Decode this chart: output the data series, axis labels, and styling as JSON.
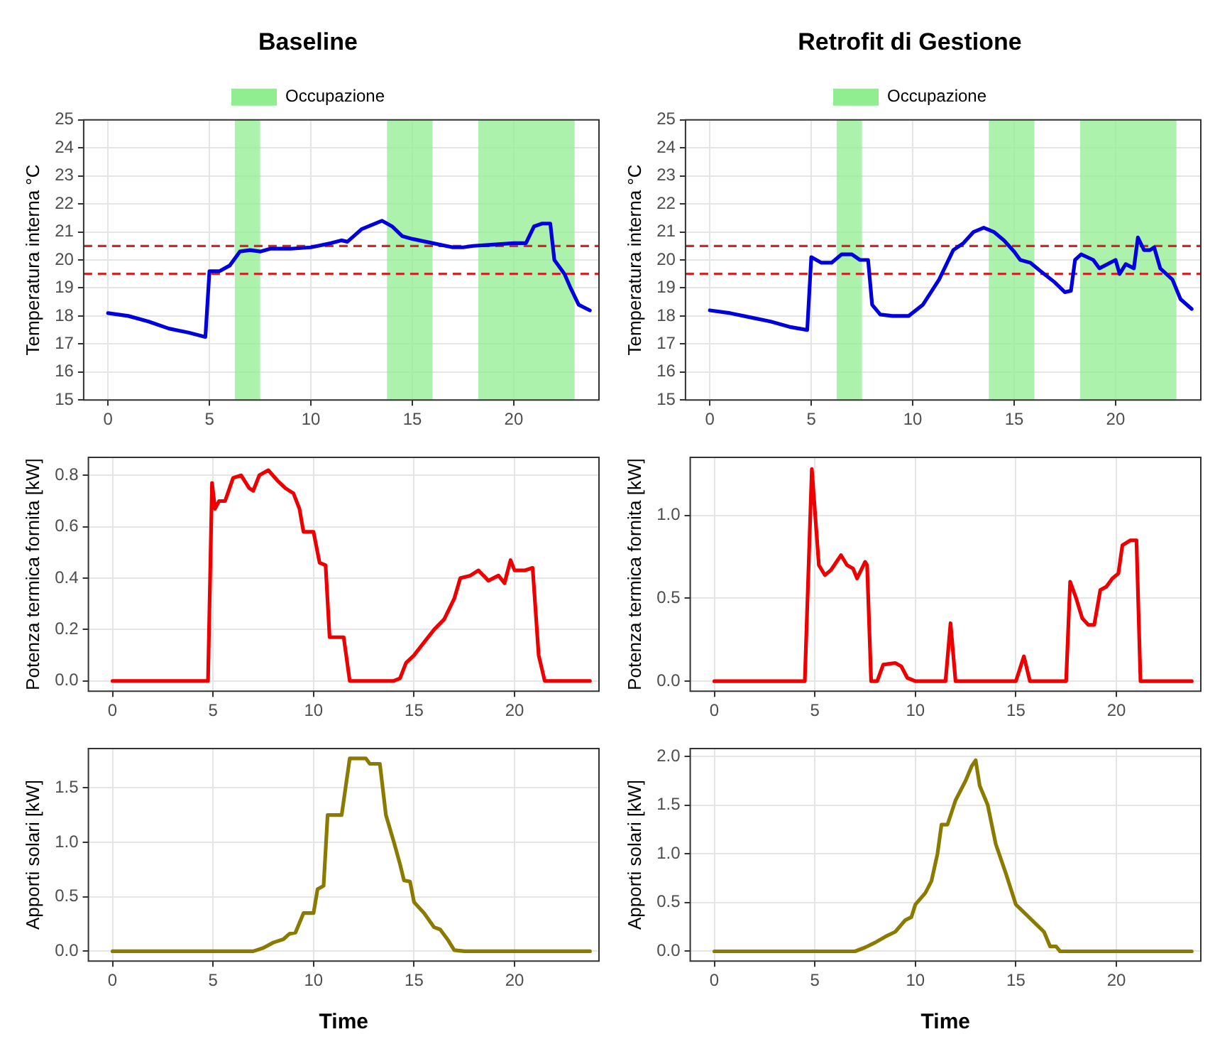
{
  "chart_data": [
    {
      "type": "line",
      "title": "Baseline",
      "legend": "top",
      "ylabel": "Temperatura interna °C",
      "xlim": [
        -1.2,
        24.2
      ],
      "xticks": [
        0,
        5,
        10,
        15,
        20
      ],
      "ylim": [
        15,
        25
      ],
      "yticks": [
        15,
        16,
        17,
        18,
        19,
        20,
        21,
        22,
        23,
        24,
        25
      ],
      "grid": true,
      "marker": "none",
      "x": [
        0,
        1,
        2,
        3,
        4,
        4.8,
        5,
        5.5,
        6,
        6.5,
        7,
        7.5,
        8,
        9,
        10,
        11,
        11.5,
        11.8,
        12.5,
        13.5,
        14,
        14.5,
        15,
        16,
        17,
        17.5,
        18,
        19,
        20,
        20.6,
        21,
        21.4,
        21.8,
        22,
        22.5,
        22.8,
        23.2,
        23.75
      ],
      "series": [
        {
          "color": "#0000dd",
          "values": [
            18.1,
            18.0,
            17.8,
            17.55,
            17.4,
            17.25,
            19.6,
            19.6,
            19.8,
            20.3,
            20.35,
            20.3,
            20.4,
            20.4,
            20.45,
            20.6,
            20.7,
            20.65,
            21.1,
            21.4,
            21.2,
            20.85,
            20.75,
            20.6,
            20.45,
            20.45,
            20.5,
            20.55,
            20.6,
            20.6,
            21.2,
            21.3,
            21.3,
            20.0,
            19.5,
            19.0,
            18.4,
            18.2
          ]
        }
      ],
      "bands": [
        {
          "axis": "x",
          "from": 6.25,
          "to": 7.5,
          "label": "Occupazione",
          "color": "#90ee90"
        },
        {
          "axis": "x",
          "from": 13.75,
          "to": 16,
          "color": "#90ee90"
        },
        {
          "axis": "x",
          "from": 18.25,
          "to": 23,
          "color": "#90ee90"
        }
      ],
      "ref_lines": [
        {
          "axis": "y",
          "value": 19.5,
          "color": "#cc2a2a",
          "line_style": "dashed"
        },
        {
          "axis": "y",
          "value": 20.5,
          "color": "#cc2a2a",
          "line_style": "dashed"
        }
      ]
    },
    {
      "type": "line",
      "title": "Retrofit di Gestione",
      "legend": "top",
      "ylabel": "Temperatura interna °C",
      "xlim": [
        -1.2,
        24.2
      ],
      "xticks": [
        0,
        5,
        10,
        15,
        20
      ],
      "ylim": [
        15,
        25
      ],
      "yticks": [
        15,
        16,
        17,
        18,
        19,
        20,
        21,
        22,
        23,
        24,
        25
      ],
      "grid": true,
      "marker": "none",
      "x": [
        0,
        1,
        2,
        3,
        4,
        4.8,
        5,
        5.5,
        6,
        6.5,
        7,
        7.4,
        7.8,
        8,
        8.4,
        9,
        9.8,
        10.5,
        11.3,
        12,
        12.5,
        13,
        13.5,
        14,
        14.5,
        15,
        15.3,
        15.8,
        16.3,
        17,
        17.5,
        17.8,
        18,
        18.3,
        18.9,
        19.2,
        20,
        20.2,
        20.5,
        20.9,
        21.1,
        21.4,
        21.7,
        21.9,
        22.2,
        22.8,
        23.2,
        23.75
      ],
      "series": [
        {
          "color": "#0000dd",
          "values": [
            18.2,
            18.1,
            17.95,
            17.8,
            17.6,
            17.5,
            20.1,
            19.9,
            19.9,
            20.2,
            20.2,
            20.0,
            20.0,
            18.4,
            18.05,
            18.0,
            18.0,
            18.4,
            19.3,
            20.35,
            20.6,
            21.0,
            21.15,
            21.0,
            20.7,
            20.3,
            20.0,
            19.9,
            19.6,
            19.2,
            18.85,
            18.9,
            20.0,
            20.2,
            20.0,
            19.7,
            20.0,
            19.5,
            19.85,
            19.7,
            20.8,
            20.35,
            20.35,
            20.45,
            19.7,
            19.3,
            18.6,
            18.25
          ]
        }
      ],
      "bands": [
        {
          "axis": "x",
          "from": 6.25,
          "to": 7.5,
          "label": "Occupazione",
          "color": "#90ee90"
        },
        {
          "axis": "x",
          "from": 13.75,
          "to": 16,
          "color": "#90ee90"
        },
        {
          "axis": "x",
          "from": 18.25,
          "to": 23,
          "color": "#90ee90"
        }
      ],
      "ref_lines": [
        {
          "axis": "y",
          "value": 19.5,
          "color": "#cc2a2a",
          "line_style": "dashed"
        },
        {
          "axis": "y",
          "value": 20.5,
          "color": "#cc2a2a",
          "line_style": "dashed"
        }
      ]
    },
    {
      "type": "line",
      "ylabel": "Potenza termica fornita [kW]",
      "xlim": [
        -1.2,
        24.2
      ],
      "xticks": [
        0,
        5,
        10,
        15,
        20
      ],
      "ylim": [
        -0.04,
        0.87
      ],
      "yticks": [
        {
          "value": 0,
          "label": "0.0"
        },
        {
          "value": 0.2,
          "label": "0.2"
        },
        {
          "value": 0.4,
          "label": "0.4"
        },
        {
          "value": 0.6,
          "label": "0.6"
        },
        {
          "value": 0.8,
          "label": "0.8"
        }
      ],
      "grid": true,
      "marker": "none",
      "x": [
        0,
        4.75,
        4.95,
        5.1,
        5.3,
        5.6,
        6,
        6.4,
        6.8,
        7,
        7.3,
        7.75,
        8.2,
        8.6,
        9,
        9.3,
        9.5,
        10,
        10.3,
        10.6,
        10.8,
        11.5,
        11.8,
        14,
        14.3,
        14.6,
        15,
        15.5,
        16,
        16.5,
        17,
        17.3,
        17.8,
        18.2,
        18.7,
        19.2,
        19.5,
        19.8,
        20,
        20.5,
        20.9,
        21.2,
        21.5,
        23.75
      ],
      "series": [
        {
          "color": "#ee0000",
          "values": [
            0,
            0,
            0.77,
            0.67,
            0.7,
            0.7,
            0.79,
            0.8,
            0.75,
            0.74,
            0.8,
            0.82,
            0.78,
            0.75,
            0.73,
            0.67,
            0.58,
            0.58,
            0.46,
            0.45,
            0.17,
            0.17,
            0,
            0,
            0.01,
            0.07,
            0.1,
            0.15,
            0.2,
            0.24,
            0.32,
            0.4,
            0.41,
            0.43,
            0.39,
            0.41,
            0.38,
            0.47,
            0.43,
            0.43,
            0.44,
            0.1,
            0,
            0
          ]
        }
      ]
    },
    {
      "type": "line",
      "ylabel": "Potenza termica fornita [kW]",
      "xlim": [
        -1.2,
        24.2
      ],
      "xticks": [
        0,
        5,
        10,
        15,
        20
      ],
      "ylim": [
        -0.06,
        1.35
      ],
      "yticks": [
        {
          "value": 0,
          "label": "0.0"
        },
        {
          "value": 0.5,
          "label": "0.5"
        },
        {
          "value": 1,
          "label": "1.0"
        }
      ],
      "grid": true,
      "marker": "none",
      "x": [
        0,
        4.5,
        4.85,
        5.2,
        5.5,
        5.8,
        6.3,
        6.6,
        6.9,
        7.1,
        7.5,
        7.6,
        7.8,
        8.1,
        8.4,
        9,
        9.3,
        9.6,
        10,
        11.5,
        11.75,
        12,
        15,
        15.4,
        15.7,
        17.5,
        17.7,
        18,
        18.3,
        18.6,
        18.9,
        19.2,
        19.5,
        19.8,
        20.1,
        20.3,
        20.7,
        21,
        21.2,
        23.75
      ],
      "series": [
        {
          "color": "#ee0000",
          "values": [
            0,
            0,
            1.28,
            0.7,
            0.64,
            0.67,
            0.76,
            0.7,
            0.68,
            0.62,
            0.72,
            0.7,
            0,
            0,
            0.1,
            0.11,
            0.09,
            0.02,
            0,
            0,
            0.35,
            0,
            0,
            0.15,
            0,
            0,
            0.6,
            0.5,
            0.38,
            0.34,
            0.34,
            0.55,
            0.57,
            0.62,
            0.65,
            0.82,
            0.85,
            0.85,
            0,
            0
          ]
        }
      ]
    },
    {
      "type": "line",
      "ylabel": "Apporti solari [kW]",
      "xlabel": "Time",
      "xlim": [
        -1.2,
        24.2
      ],
      "xticks": [
        0,
        5,
        10,
        15,
        20
      ],
      "ylim": [
        -0.09,
        1.86
      ],
      "yticks": [
        {
          "value": 0,
          "label": "0.0"
        },
        {
          "value": 0.5,
          "label": "0.5"
        },
        {
          "value": 1,
          "label": "1.0"
        },
        {
          "value": 1.5,
          "label": "1.5"
        }
      ],
      "grid": true,
      "marker": "none",
      "x": [
        0,
        7,
        7.5,
        8,
        8.5,
        8.8,
        9.1,
        9.5,
        10,
        10.2,
        10.5,
        10.7,
        11.4,
        11.8,
        12.6,
        12.8,
        13.3,
        13.6,
        14,
        14.3,
        14.5,
        14.8,
        15,
        15.5,
        16,
        16.3,
        16.7,
        17,
        17.5,
        23.75
      ],
      "series": [
        {
          "color": "#8b7a00",
          "values": [
            0,
            0,
            0.03,
            0.08,
            0.11,
            0.16,
            0.17,
            0.35,
            0.35,
            0.57,
            0.6,
            1.25,
            1.25,
            1.77,
            1.77,
            1.72,
            1.72,
            1.25,
            1.0,
            0.8,
            0.65,
            0.64,
            0.45,
            0.35,
            0.22,
            0.2,
            0.1,
            0.01,
            0,
            0
          ]
        }
      ]
    },
    {
      "type": "line",
      "ylabel": "Apporti solari [kW]",
      "xlabel": "Time",
      "xlim": [
        -1.2,
        24.2
      ],
      "xticks": [
        0,
        5,
        10,
        15,
        20
      ],
      "ylim": [
        -0.1,
        2.08
      ],
      "yticks": [
        {
          "value": 0,
          "label": "0.0"
        },
        {
          "value": 0.5,
          "label": "0.5"
        },
        {
          "value": 1,
          "label": "1.0"
        },
        {
          "value": 1.5,
          "label": "1.5"
        },
        {
          "value": 2,
          "label": "2.0"
        }
      ],
      "grid": true,
      "marker": "none",
      "x": [
        0,
        7,
        7.5,
        8,
        8.5,
        9,
        9.5,
        9.8,
        10,
        10.5,
        10.8,
        11.1,
        11.3,
        11.6,
        12,
        12.5,
        12.8,
        13,
        13.2,
        13.6,
        14,
        14.5,
        15,
        15.5,
        16,
        16.4,
        16.7,
        17,
        17.2,
        23.75
      ],
      "series": [
        {
          "color": "#8b7a00",
          "values": [
            0,
            0,
            0.04,
            0.09,
            0.15,
            0.2,
            0.32,
            0.35,
            0.48,
            0.6,
            0.72,
            1.0,
            1.3,
            1.3,
            1.55,
            1.75,
            1.9,
            1.96,
            1.7,
            1.5,
            1.1,
            0.8,
            0.48,
            0.38,
            0.28,
            0.2,
            0.05,
            0.05,
            0,
            0
          ]
        }
      ]
    }
  ]
}
